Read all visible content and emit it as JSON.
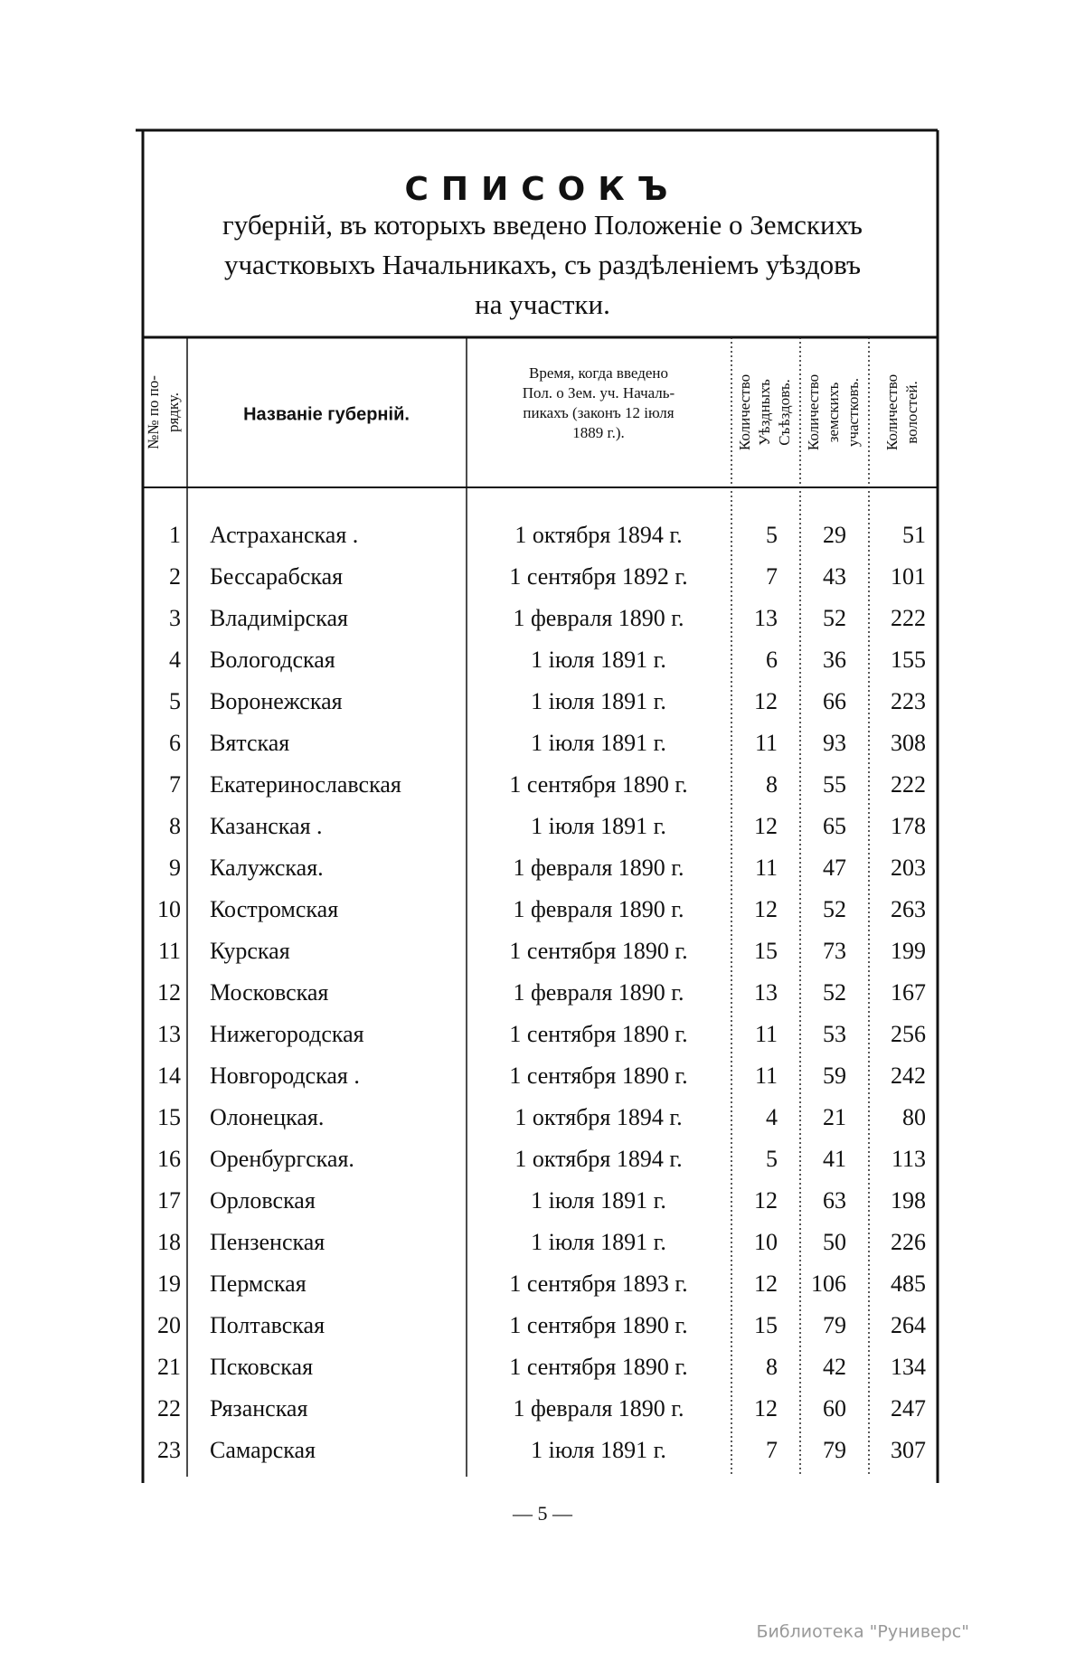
{
  "title": "СПИСОКЪ",
  "subtitle": [
    "губерній, въ которыхъ введено Положеніе о Земскихъ",
    "участковыхъ Начальникахъ, съ раздѣленіемъ уѣздовъ",
    "на участки."
  ],
  "table": {
    "header": [
      [
        "№№ по по-",
        "рядку."
      ],
      [
        "Названіе губерній."
      ],
      [
        "Время, когда введено",
        "Пол. о Зем. уч. Началь-",
        "пикахъ (законъ 12 іюля",
        "1889 г.)."
      ],
      [
        "Количество",
        "Уѣздныхъ",
        "Съѣздовъ."
      ],
      [
        "Количество",
        "земскихъ",
        "участковъ."
      ],
      [
        "Количество",
        "волостей."
      ]
    ],
    "rows": [
      [
        1,
        "Астраханская .",
        "1 октября 1894 г.",
        5,
        29,
        51
      ],
      [
        2,
        "Бессарабская",
        "1 сентября 1892 г.",
        7,
        43,
        101
      ],
      [
        3,
        "Владимірская",
        "1 февраля 1890 г.",
        13,
        52,
        222
      ],
      [
        4,
        "Вологодская",
        "1 іюля 1891 г.",
        6,
        36,
        155
      ],
      [
        5,
        "Воронежская",
        "1 іюля 1891 г.",
        12,
        66,
        223
      ],
      [
        6,
        "Вятская",
        "1 іюля 1891 г.",
        11,
        93,
        308
      ],
      [
        7,
        "Екатеринославская",
        "1 сентября 1890 г.",
        8,
        55,
        222
      ],
      [
        8,
        "Казанская .",
        "1 іюля 1891 г.",
        12,
        65,
        178
      ],
      [
        9,
        "Калужская.",
        "1 февраля 1890 г.",
        11,
        47,
        203
      ],
      [
        10,
        "Костромская",
        "1 февраля 1890 г.",
        12,
        52,
        263
      ],
      [
        11,
        "Курская",
        "1 сентября 1890 г.",
        15,
        73,
        199
      ],
      [
        12,
        "Московская",
        "1 февраля 1890 г.",
        13,
        52,
        167
      ],
      [
        13,
        "Нижегородская",
        "1 сентября 1890 г.",
        11,
        53,
        256
      ],
      [
        14,
        "Новгородская .",
        "1 сентября 1890 г.",
        11,
        59,
        242
      ],
      [
        15,
        "Олонецкая.",
        "1 октября 1894 г.",
        4,
        21,
        80
      ],
      [
        16,
        "Оренбургская.",
        "1 октября 1894 г.",
        5,
        41,
        113
      ],
      [
        17,
        "Орловская",
        "1 іюля 1891 г.",
        12,
        63,
        198
      ],
      [
        18,
        "Пензенская",
        "1 іюля 1891 г.",
        10,
        50,
        226
      ],
      [
        19,
        "Пермская",
        "1 сентября 1893 г.",
        12,
        106,
        485
      ],
      [
        20,
        "Полтавская",
        "1 сентября 1890 г.",
        15,
        79,
        264
      ],
      [
        21,
        "Псковская",
        "1 сентября 1890 г.",
        8,
        42,
        134
      ],
      [
        22,
        "Рязанская",
        "1 февраля 1890 г.",
        12,
        60,
        247
      ],
      [
        23,
        "Самарская",
        "1 іюля 1891 г.",
        7,
        79,
        307
      ]
    ]
  },
  "page_number": "— 5 —",
  "watermark": "Библиотека \"Руниверс\""
}
